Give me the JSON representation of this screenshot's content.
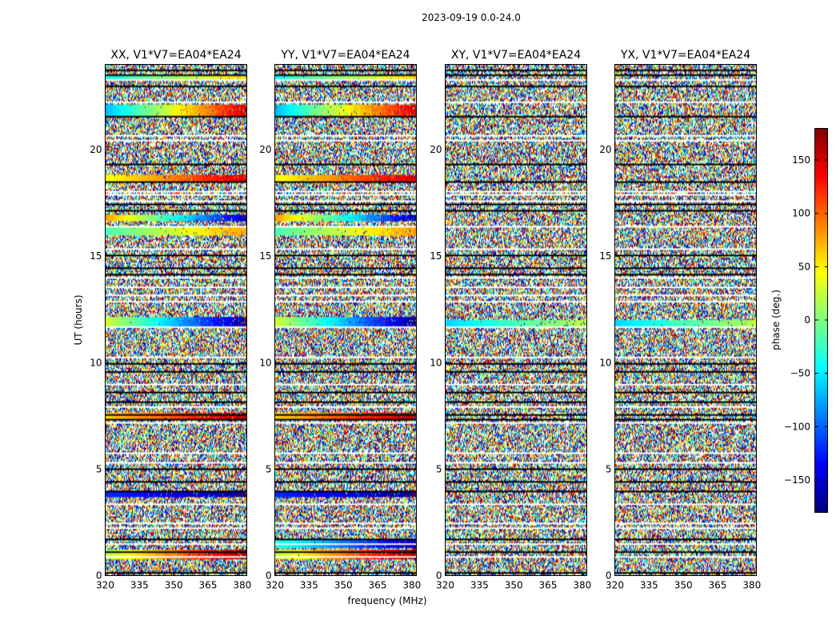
{
  "chart_data": {
    "type": "heatmap",
    "suptitle": "2023-09-19 0.0-24.0",
    "xlabel": "frequency (MHz)",
    "ylabel": "UT (hours)",
    "xlim": [
      320,
      382
    ],
    "ylim": [
      0,
      24
    ],
    "xticks": [
      320,
      335,
      350,
      365,
      380
    ],
    "yticks": [
      0,
      5,
      10,
      15,
      20
    ],
    "colorbar": {
      "label": "phase (deg.)",
      "range": [
        -180,
        180
      ],
      "ticks": [
        -150,
        -100,
        -50,
        0,
        50,
        100,
        150
      ],
      "tick_labels": [
        "−150",
        "−100",
        "−50",
        "0",
        "50",
        "100",
        "150"
      ],
      "colormap": "jet"
    },
    "panels": [
      {
        "title": "XX, V1*V7=EA04*EA24",
        "correlation": "XX"
      },
      {
        "title": "YY, V1*V7=EA04*EA24",
        "correlation": "YY"
      },
      {
        "title": "XY, V1*V7=EA04*EA24",
        "correlation": "XY"
      },
      {
        "title": "YX, V1*V7=EA04*EA24",
        "correlation": "YX"
      }
    ],
    "flagged_white_hours": [
      0.9,
      1.5,
      2.25,
      2.5,
      3.4,
      5.3,
      5.8,
      7.2,
      7.95,
      9.0,
      10.3,
      11.7,
      12.9,
      13.2,
      13.55,
      14.0,
      15.35,
      16.4,
      17.6,
      17.9,
      18.1,
      20.5,
      20.7,
      22.3,
      23.0,
      23.3
    ],
    "flagged_black_hours": [
      0.15,
      1.1,
      1.7,
      4.0,
      4.4,
      5.0,
      7.35,
      7.6,
      8.2,
      8.6,
      9.6,
      10.0,
      14.2,
      14.5,
      15.1,
      17.2,
      17.45,
      18.5,
      19.35,
      21.6,
      23.0,
      23.55,
      23.75
    ],
    "coherent_phase_bands": [
      {
        "hour": 1.0,
        "height": 0.35,
        "panels": [
          0,
          1
        ],
        "phase_start": 20,
        "phase_end": 170
      },
      {
        "hour": 1.5,
        "height": 0.3,
        "panels": [
          1
        ],
        "phase_start": -30,
        "phase_end": -160
      },
      {
        "hour": 3.85,
        "height": 0.2,
        "panels": [
          0,
          1
        ],
        "phase_start": -120,
        "phase_end": -170
      },
      {
        "hour": 7.5,
        "height": 0.25,
        "panels": [
          0,
          1
        ],
        "phase_start": 60,
        "phase_end": 160
      },
      {
        "hour": 11.9,
        "height": 0.45,
        "panels": [
          0,
          1
        ],
        "phase_start": 30,
        "phase_end": -170
      },
      {
        "hour": 11.85,
        "height": 0.3,
        "panels": [
          2,
          3
        ],
        "phase_start": -60,
        "phase_end": 20
      },
      {
        "hour": 16.2,
        "height": 0.25,
        "panels": [
          0,
          1
        ],
        "phase_start": -20,
        "phase_end": 80
      },
      {
        "hour": 16.85,
        "height": 0.25,
        "panels": [
          0,
          1
        ],
        "phase_start": 80,
        "phase_end": -160
      },
      {
        "hour": 18.7,
        "height": 0.25,
        "panels": [
          0,
          1
        ],
        "phase_start": 40,
        "phase_end": 150
      },
      {
        "hour": 21.9,
        "height": 0.4,
        "panels": [
          0,
          1
        ],
        "phase_start": -70,
        "phase_end": 150
      },
      {
        "hour": 23.4,
        "height": 0.2,
        "panels": [
          0,
          1
        ],
        "phase_start": -40,
        "phase_end": 60
      }
    ]
  }
}
